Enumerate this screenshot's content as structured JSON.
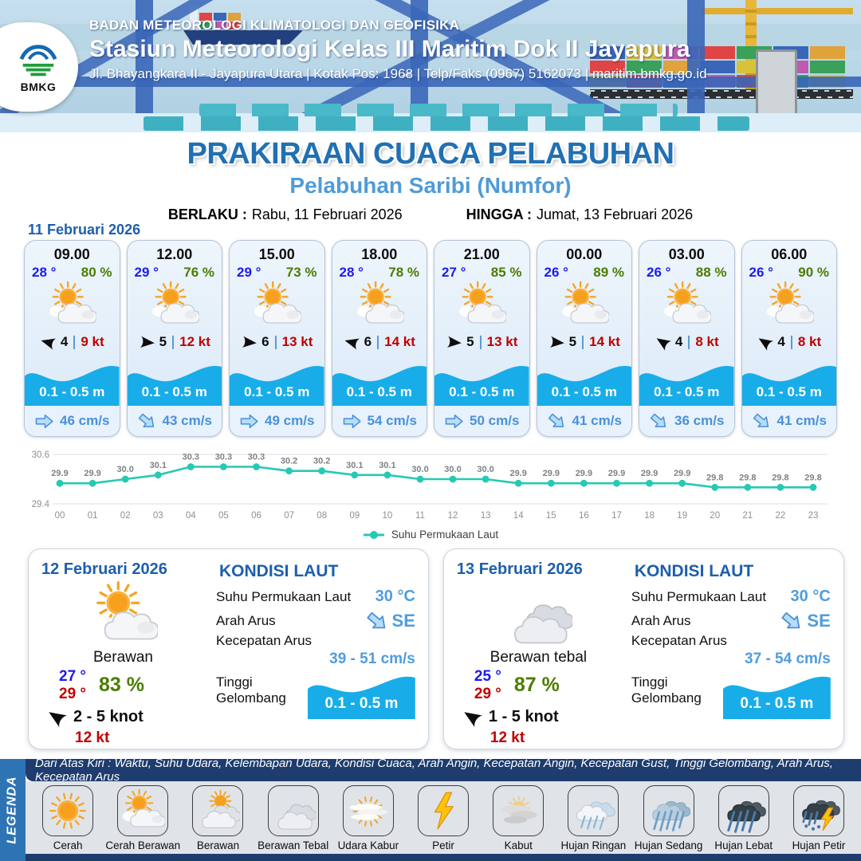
{
  "header": {
    "org": "BADAN METEOROLOGI KLIMATOLOGI DAN GEOFISIKA",
    "station": "Stasiun Meteorologi Kelas III Maritim Dok II Jayapura",
    "address": "Jl. Bhayangkara II - Jayapura Utara | Kotak Pos: 1968 | Telp/Faks (0967) 5162073 | maritim.bmkg.go.id",
    "logo": "BMKG"
  },
  "title": {
    "main": "PRAKIRAAN CUACA PELABUHAN",
    "port": "Pelabuhan Saribi (Numfor)",
    "berlaku_label": "BERLAKU :",
    "berlaku_value": "Rabu, 11 Februari 2026",
    "hingga_label": "HINGGA :",
    "hingga_value": "Jumat, 13 Februari 2026"
  },
  "forecast_date": "11 Februari 2026",
  "cards": [
    {
      "time": "09.00",
      "temp": "28 °",
      "rh": "80 %",
      "icon": "cerah-berawan",
      "wind": "4",
      "gust": "9 kt",
      "wave": "0.1 - 0.5 m",
      "current": "46 cm/s",
      "wind_deg": 195,
      "current_deg": 0
    },
    {
      "time": "12.00",
      "temp": "29 °",
      "rh": "76 %",
      "icon": "cerah-berawan",
      "wind": "5",
      "gust": "12 kt",
      "wave": "0.1 - 0.5 m",
      "current": "43 cm/s",
      "wind_deg": 5,
      "current_deg": 40
    },
    {
      "time": "15.00",
      "temp": "29 °",
      "rh": "73 %",
      "icon": "cerah-berawan",
      "wind": "6",
      "gust": "13 kt",
      "wave": "0.1 - 0.5 m",
      "current": "49 cm/s",
      "wind_deg": 5,
      "current_deg": 0
    },
    {
      "time": "18.00",
      "temp": "28 °",
      "rh": "78 %",
      "icon": "cerah-berawan",
      "wind": "6",
      "gust": "14 kt",
      "wave": "0.1 - 0.5 m",
      "current": "54 cm/s",
      "wind_deg": 195,
      "current_deg": 0
    },
    {
      "time": "21.00",
      "temp": "27 °",
      "rh": "85 %",
      "icon": "cerah-berawan",
      "wind": "5",
      "gust": "13 kt",
      "wave": "0.1 - 0.5 m",
      "current": "50 cm/s",
      "wind_deg": 5,
      "current_deg": 0
    },
    {
      "time": "00.00",
      "temp": "26 °",
      "rh": "89 %",
      "icon": "cerah-berawan",
      "wind": "5",
      "gust": "14 kt",
      "wave": "0.1 - 0.5 m",
      "current": "41 cm/s",
      "wind_deg": 5,
      "current_deg": 40
    },
    {
      "time": "03.00",
      "temp": "26 °",
      "rh": "88 %",
      "icon": "cerah-berawan",
      "wind": "4",
      "gust": "8 kt",
      "wave": "0.1 - 0.5 m",
      "current": "36 cm/s",
      "wind_deg": 213,
      "current_deg": 40
    },
    {
      "time": "06.00",
      "temp": "26 °",
      "rh": "90 %",
      "icon": "cerah-berawan",
      "wind": "4",
      "gust": "8 kt",
      "wave": "0.1 - 0.5 m",
      "current": "41 cm/s",
      "wind_deg": 213,
      "current_deg": 40
    }
  ],
  "chart_data": {
    "type": "line",
    "x": [
      "00",
      "01",
      "02",
      "03",
      "04",
      "05",
      "06",
      "07",
      "08",
      "09",
      "10",
      "11",
      "12",
      "13",
      "14",
      "15",
      "16",
      "17",
      "18",
      "19",
      "20",
      "21",
      "22",
      "23"
    ],
    "values": [
      29.9,
      29.9,
      30.0,
      30.1,
      30.3,
      30.3,
      30.3,
      30.2,
      30.2,
      30.1,
      30.1,
      30.0,
      30.0,
      30.0,
      29.9,
      29.9,
      29.9,
      29.9,
      29.9,
      29.9,
      29.8,
      29.8,
      29.8,
      29.8
    ],
    "series_name": "Suhu Permukaan Laut",
    "ylim": [
      29.4,
      30.6
    ],
    "yticks": [
      29.4,
      30.6
    ],
    "line_color": "#26c9b3",
    "grid": true,
    "legend_position": "bottom"
  },
  "day_cards": [
    {
      "date": "12 Februari 2026",
      "icon": "cerah-berawan",
      "condition": "Berawan",
      "temp_min": "27 °",
      "temp_max": "29 °",
      "rh": "83 %",
      "wind_range": "2 - 5 knot",
      "gust": "12 kt",
      "wind_deg": 213,
      "sea": {
        "heading": "KONDISI LAUT",
        "sst_label": "Suhu Permukaan Laut",
        "sst": "30 °C",
        "current_dir_label": "Arah Arus",
        "current_dir": "SE",
        "current_dir_deg": 40,
        "current_speed_label": "Kecepatan Arus",
        "current_speed": "39 - 51 cm/s",
        "wave_label": "Tinggi Gelombang",
        "wave": "0.1 - 0.5 m"
      }
    },
    {
      "date": "13 Februari 2026",
      "icon": "berawan-tebal",
      "condition": "Berawan tebal",
      "temp_min": "25 °",
      "temp_max": "29 °",
      "rh": "87 %",
      "wind_range": "1 - 5 knot",
      "gust": "12 kt",
      "wind_deg": 213,
      "sea": {
        "heading": "KONDISI LAUT",
        "sst_label": "Suhu Permukaan Laut",
        "sst": "30 °C",
        "current_dir_label": "Arah Arus",
        "current_dir": "SE",
        "current_dir_deg": 40,
        "current_speed_label": "Kecepatan Arus",
        "current_speed": "37 - 54 cm/s",
        "wave_label": "Tinggi Gelombang",
        "wave": "0.1 - 0.5 m"
      }
    }
  ],
  "legend": {
    "tab": "LEGENDA",
    "note": "Dari Atas Kiri : Waktu, Suhu Udara, Kelembapan Udara, Kondisi Cuaca, Arah Angin, Kecepatan Angin, Kecepatan Gust, Tinggi Gelombang, Arah Arus, Kecepatan Arus",
    "items": [
      {
        "label": "Cerah",
        "icon": "cerah"
      },
      {
        "label": "Cerah Berawan",
        "icon": "cerah-berawan"
      },
      {
        "label": "Berawan",
        "icon": "berawan"
      },
      {
        "label": "Berawan Tebal",
        "icon": "berawan-tebal"
      },
      {
        "label": "Udara Kabur",
        "icon": "udara-kabur"
      },
      {
        "label": "Petir",
        "icon": "petir"
      },
      {
        "label": "Kabut",
        "icon": "kabut"
      },
      {
        "label": "Hujan Ringan",
        "icon": "hujan-ringan"
      },
      {
        "label": "Hujan Sedang",
        "icon": "hujan-sedang"
      },
      {
        "label": "Hujan Lebat",
        "icon": "hujan-lebat"
      },
      {
        "label": "Hujan Petir",
        "icon": "hujan-petir"
      }
    ]
  },
  "colors": {
    "accent_blue": "#2170b3",
    "subtitle_blue": "#4f9bd8",
    "wave_blue": "#18ade9",
    "chart_teal": "#26c9b3",
    "temp_blue": "#1b1bf0",
    "humidity_green": "#4b7c00",
    "gust_red": "#c00000",
    "marine_value_blue": "#4f9ddd",
    "navy": "#1e3c6e",
    "legend_tab_blue": "#2e74b5"
  }
}
